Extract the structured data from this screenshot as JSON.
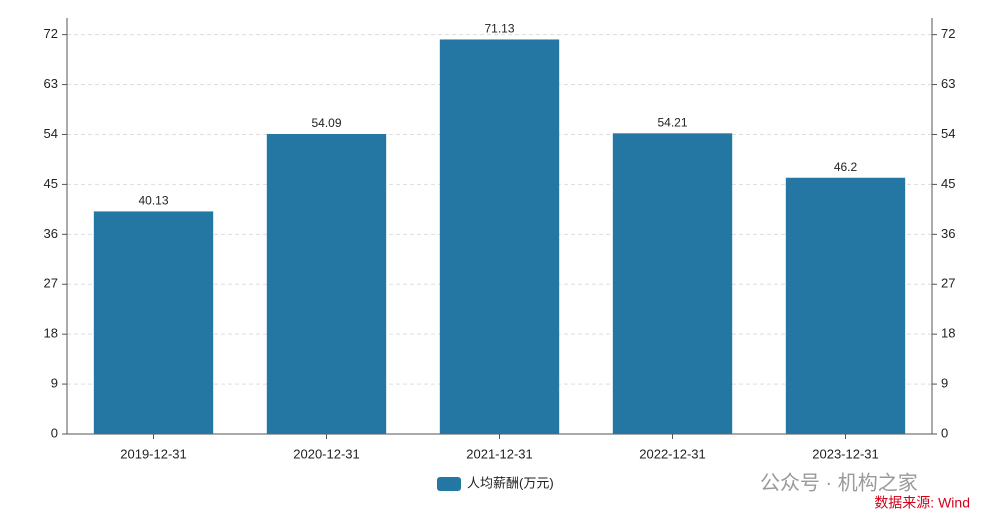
{
  "chart_data": {
    "type": "bar",
    "categories": [
      "2019-12-31",
      "2020-12-31",
      "2021-12-31",
      "2022-12-31",
      "2023-12-31"
    ],
    "series": [
      {
        "name": "人均薪酬(万元)",
        "color": "#2577a3",
        "values": [
          40.13,
          54.09,
          71.13,
          54.21,
          46.2
        ]
      }
    ],
    "ylim": [
      0,
      75
    ],
    "yticks": [
      0,
      9,
      18,
      27,
      36,
      45,
      54,
      63,
      72
    ],
    "y2lim": [
      0,
      75
    ],
    "y2ticks": [
      0,
      9,
      18,
      27,
      36,
      45,
      54,
      63,
      72
    ],
    "grid": true,
    "legend": "bottom",
    "watermark": "公众号 · 机构之家",
    "source": "数据来源: Wind"
  }
}
